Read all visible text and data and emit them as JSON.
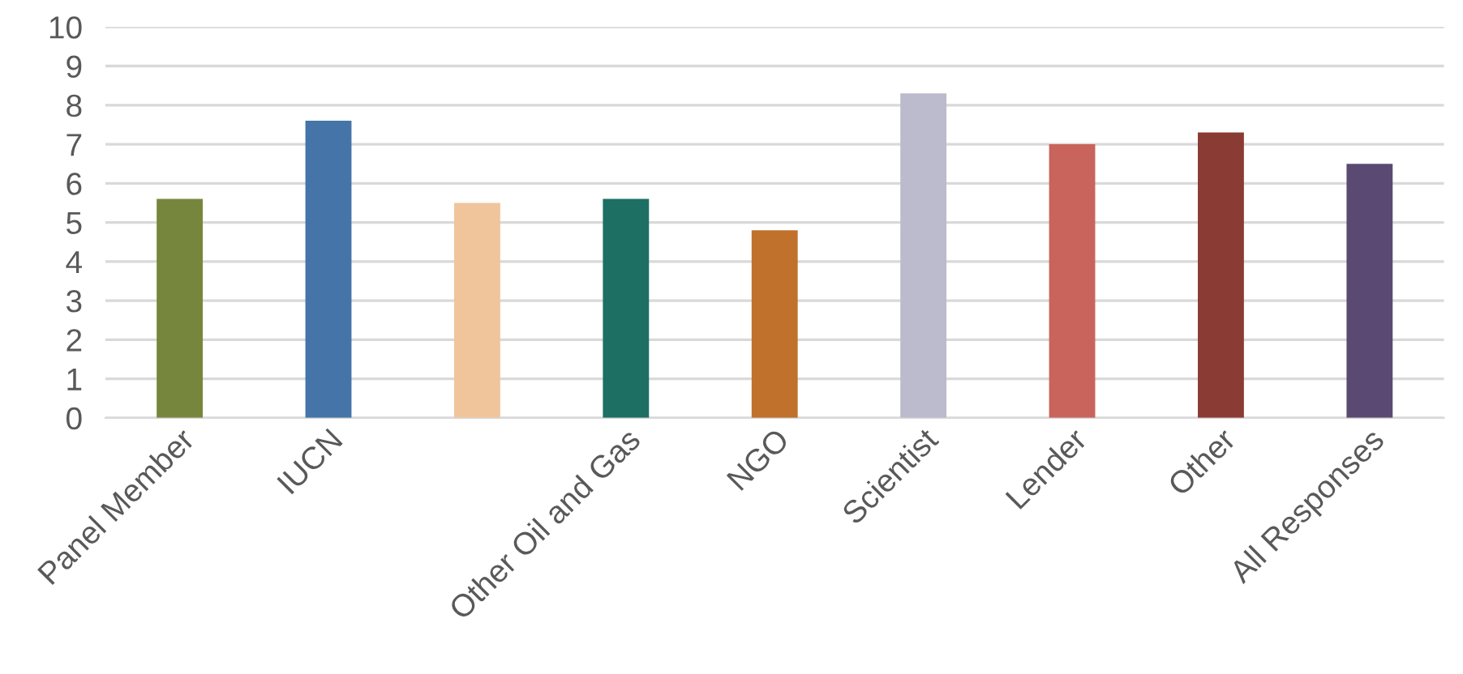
{
  "chart_data": {
    "type": "bar",
    "categories": [
      "Panel Member",
      "IUCN",
      null,
      "Other Oil and Gas",
      "NGO",
      "Scientist",
      "Lender",
      "Other",
      "All Responses"
    ],
    "values": [
      5.6,
      7.6,
      5.5,
      5.6,
      4.8,
      8.3,
      7.0,
      7.3,
      6.5
    ],
    "colors": [
      "#76873d",
      "#4575a8",
      "#f0c59c",
      "#1d6f63",
      "#c0712c",
      "#bcbacd",
      "#c9645d",
      "#8a3c34",
      "#5a4a73"
    ],
    "ylim": [
      0,
      10
    ],
    "yticks": [
      0,
      1,
      2,
      3,
      4,
      5,
      6,
      7,
      8,
      9,
      10
    ],
    "grid": "y",
    "legend": false
  }
}
